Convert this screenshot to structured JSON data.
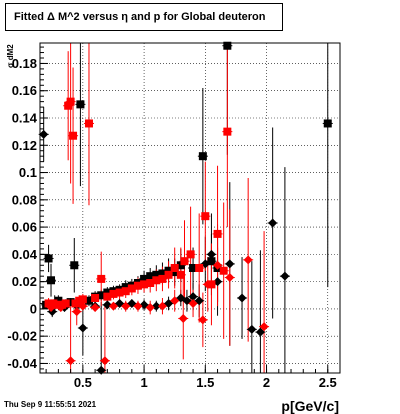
{
  "chart_data": {
    "type": "scatter",
    "title": "Fitted Δ M^2 versus η and p for Global deuteron",
    "xlabel": "p[GeV/c]",
    "ylabel": "σ dM2",
    "xlim": [
      0.15,
      2.6
    ],
    "ylim": [
      -0.047,
      0.195
    ],
    "grid": true,
    "x_ticks": [
      0.5,
      1,
      1.5,
      2,
      2.5
    ],
    "x_tick_labels": [
      "0.5",
      "1",
      "1.5",
      "2",
      "2.5"
    ],
    "y_ticks": [
      -0.04,
      -0.02,
      0,
      0.02,
      0.04,
      0.06,
      0.08,
      0.1,
      0.12,
      0.14,
      0.16,
      0.18
    ],
    "y_tick_labels": [
      "-0.04",
      "-0.02",
      "0",
      "0.02",
      "0.04",
      "0.06",
      "0.08",
      "0.1",
      "0.12",
      "0.14",
      "0.16",
      "0.18"
    ],
    "series": [
      {
        "color": "#000000",
        "marker": "square",
        "points": [
          {
            "x": 0.2,
            "y": 0.003,
            "err": 0.003
          },
          {
            "x": 0.22,
            "y": 0.037,
            "err": 0.01
          },
          {
            "x": 0.24,
            "y": 0.021,
            "err": 0.012
          },
          {
            "x": 0.27,
            "y": 0.004,
            "err": 0.006
          },
          {
            "x": 0.3,
            "y": 0.006,
            "err": 0.004
          },
          {
            "x": 0.33,
            "y": 0.002,
            "err": 0.003
          },
          {
            "x": 0.36,
            "y": 0.004,
            "err": 0.003
          },
          {
            "x": 0.4,
            "y": 0.005,
            "err": 0.003
          },
          {
            "x": 0.43,
            "y": 0.032,
            "err": 0.02
          },
          {
            "x": 0.48,
            "y": 0.15,
            "err": 0.06
          },
          {
            "x": 0.55,
            "y": 0.006,
            "err": 0.004
          },
          {
            "x": 0.6,
            "y": 0.009,
            "err": 0.004
          },
          {
            "x": 0.65,
            "y": 0.01,
            "err": 0.004
          },
          {
            "x": 0.7,
            "y": 0.012,
            "err": 0.004
          },
          {
            "x": 0.75,
            "y": 0.013,
            "err": 0.004
          },
          {
            "x": 0.8,
            "y": 0.014,
            "err": 0.004
          },
          {
            "x": 0.85,
            "y": 0.016,
            "err": 0.005
          },
          {
            "x": 0.9,
            "y": 0.017,
            "err": 0.005
          },
          {
            "x": 0.95,
            "y": 0.019,
            "err": 0.005
          },
          {
            "x": 1.0,
            "y": 0.022,
            "err": 0.006
          },
          {
            "x": 1.05,
            "y": 0.024,
            "err": 0.006
          },
          {
            "x": 1.1,
            "y": 0.025,
            "err": 0.007
          },
          {
            "x": 1.15,
            "y": 0.026,
            "err": 0.008
          },
          {
            "x": 1.2,
            "y": 0.028,
            "err": 0.009
          },
          {
            "x": 1.25,
            "y": 0.027,
            "err": 0.01
          },
          {
            "x": 1.3,
            "y": 0.032,
            "err": 0.012
          },
          {
            "x": 1.4,
            "y": 0.03,
            "err": 0.015
          },
          {
            "x": 1.48,
            "y": 0.112,
            "err": 0.05
          },
          {
            "x": 1.55,
            "y": 0.035,
            "err": 0.02
          },
          {
            "x": 1.6,
            "y": 0.03,
            "err": 0.025
          },
          {
            "x": 1.68,
            "y": 0.193,
            "err": 0.08
          },
          {
            "x": 2.5,
            "y": 0.136,
            "err": 0.12
          }
        ]
      },
      {
        "color": "#000000",
        "marker": "diamond",
        "points": [
          {
            "x": 0.18,
            "y": 0.128,
            "err": 0.02
          },
          {
            "x": 0.25,
            "y": -0.002,
            "err": 0.004
          },
          {
            "x": 0.35,
            "y": 0.001,
            "err": 0.003
          },
          {
            "x": 0.45,
            "y": 0.002,
            "err": 0.003
          },
          {
            "x": 0.5,
            "y": -0.014,
            "err": 0.02
          },
          {
            "x": 0.6,
            "y": 0.002,
            "err": 0.003
          },
          {
            "x": 0.65,
            "y": -0.045,
            "err": 0.05
          },
          {
            "x": 0.7,
            "y": 0.003,
            "err": 0.003
          },
          {
            "x": 0.8,
            "y": 0.004,
            "err": 0.003
          },
          {
            "x": 0.9,
            "y": 0.004,
            "err": 0.003
          },
          {
            "x": 1.0,
            "y": 0.003,
            "err": 0.004
          },
          {
            "x": 1.1,
            "y": 0.002,
            "err": 0.004
          },
          {
            "x": 1.2,
            "y": 0.004,
            "err": 0.005
          },
          {
            "x": 1.3,
            "y": 0.008,
            "err": 0.006
          },
          {
            "x": 1.35,
            "y": 0.006,
            "err": 0.008
          },
          {
            "x": 1.4,
            "y": 0.009,
            "err": 0.01
          },
          {
            "x": 1.45,
            "y": 0.006,
            "err": 0.012
          },
          {
            "x": 1.5,
            "y": 0.033,
            "err": 0.02
          },
          {
            "x": 1.55,
            "y": 0.04,
            "err": 0.03
          },
          {
            "x": 1.6,
            "y": 0.02,
            "err": 0.025
          },
          {
            "x": 1.7,
            "y": 0.033,
            "err": 0.06
          },
          {
            "x": 1.8,
            "y": 0.008,
            "err": 0.03
          },
          {
            "x": 1.88,
            "y": -0.015,
            "err": 0.05
          },
          {
            "x": 1.95,
            "y": -0.017,
            "err": 0.06
          },
          {
            "x": 2.05,
            "y": 0.063,
            "err": 0.07
          },
          {
            "x": 2.15,
            "y": 0.024,
            "err": 0.08
          }
        ]
      },
      {
        "color": "#ff0000",
        "marker": "square",
        "points": [
          {
            "x": 0.22,
            "y": 0.004,
            "err": 0.004
          },
          {
            "x": 0.26,
            "y": 0.004,
            "err": 0.003
          },
          {
            "x": 0.3,
            "y": 0.003,
            "err": 0.003
          },
          {
            "x": 0.33,
            "y": 0.003,
            "err": 0.003
          },
          {
            "x": 0.36,
            "y": 0.004,
            "err": 0.003
          },
          {
            "x": 0.38,
            "y": 0.149,
            "err": 0.04
          },
          {
            "x": 0.4,
            "y": 0.152,
            "err": 0.06
          },
          {
            "x": 0.42,
            "y": 0.127,
            "err": 0.05
          },
          {
            "x": 0.44,
            "y": 0.004,
            "err": 0.003
          },
          {
            "x": 0.47,
            "y": 0.006,
            "err": 0.004
          },
          {
            "x": 0.5,
            "y": 0.007,
            "err": 0.004
          },
          {
            "x": 0.55,
            "y": 0.136,
            "err": 0.06
          },
          {
            "x": 0.6,
            "y": 0.008,
            "err": 0.004
          },
          {
            "x": 0.65,
            "y": 0.022,
            "err": 0.02
          },
          {
            "x": 0.7,
            "y": 0.009,
            "err": 0.004
          },
          {
            "x": 0.75,
            "y": 0.011,
            "err": 0.004
          },
          {
            "x": 0.8,
            "y": 0.012,
            "err": 0.005
          },
          {
            "x": 0.85,
            "y": 0.013,
            "err": 0.005
          },
          {
            "x": 0.9,
            "y": 0.015,
            "err": 0.005
          },
          {
            "x": 0.95,
            "y": 0.017,
            "err": 0.006
          },
          {
            "x": 1.0,
            "y": 0.018,
            "err": 0.006
          },
          {
            "x": 1.05,
            "y": 0.019,
            "err": 0.007
          },
          {
            "x": 1.1,
            "y": 0.021,
            "err": 0.008
          },
          {
            "x": 1.15,
            "y": 0.022,
            "err": 0.009
          },
          {
            "x": 1.2,
            "y": 0.025,
            "err": 0.01
          },
          {
            "x": 1.25,
            "y": 0.03,
            "err": 0.015
          },
          {
            "x": 1.3,
            "y": 0.025,
            "err": 0.02
          },
          {
            "x": 1.33,
            "y": 0.035,
            "err": 0.03
          },
          {
            "x": 1.38,
            "y": 0.04,
            "err": 0.035
          },
          {
            "x": 1.45,
            "y": 0.03,
            "err": 0.04
          },
          {
            "x": 1.5,
            "y": 0.068,
            "err": 0.04
          },
          {
            "x": 1.55,
            "y": 0.018,
            "err": 0.03
          },
          {
            "x": 1.6,
            "y": 0.055,
            "err": 0.05
          },
          {
            "x": 1.65,
            "y": 0.028,
            "err": 0.05
          },
          {
            "x": 1.68,
            "y": 0.13,
            "err": 0.07
          }
        ]
      },
      {
        "color": "#ff0000",
        "marker": "diamond",
        "points": [
          {
            "x": 0.24,
            "y": 0.001,
            "err": 0.003
          },
          {
            "x": 0.32,
            "y": 0.001,
            "err": 0.003
          },
          {
            "x": 0.4,
            "y": -0.038,
            "err": 0.04
          },
          {
            "x": 0.45,
            "y": -0.002,
            "err": 0.01
          },
          {
            "x": 0.5,
            "y": 0.002,
            "err": 0.003
          },
          {
            "x": 0.6,
            "y": 0.001,
            "err": 0.003
          },
          {
            "x": 0.68,
            "y": -0.038,
            "err": 0.04
          },
          {
            "x": 0.75,
            "y": 0.002,
            "err": 0.003
          },
          {
            "x": 0.85,
            "y": 0.002,
            "err": 0.004
          },
          {
            "x": 0.95,
            "y": 0.002,
            "err": 0.004
          },
          {
            "x": 1.05,
            "y": 0.001,
            "err": 0.005
          },
          {
            "x": 1.15,
            "y": 0.002,
            "err": 0.006
          },
          {
            "x": 1.25,
            "y": 0.006,
            "err": 0.008
          },
          {
            "x": 1.32,
            "y": -0.007,
            "err": 0.03
          },
          {
            "x": 1.4,
            "y": 0.004,
            "err": 0.01
          },
          {
            "x": 1.48,
            "y": -0.008,
            "err": 0.02
          },
          {
            "x": 1.52,
            "y": 0.018,
            "err": 0.02
          },
          {
            "x": 1.6,
            "y": 0.032,
            "err": 0.03
          },
          {
            "x": 1.7,
            "y": 0.023,
            "err": 0.05
          },
          {
            "x": 1.85,
            "y": 0.036,
            "err": 0.06
          },
          {
            "x": 1.98,
            "y": -0.013,
            "err": 0.07
          }
        ]
      }
    ]
  },
  "footer": {
    "timestamp": "Thu Sep  9 11:55:51 2021"
  }
}
